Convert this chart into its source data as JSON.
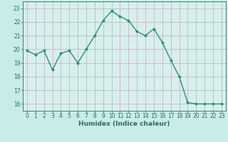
{
  "x": [
    0,
    1,
    2,
    3,
    4,
    5,
    6,
    7,
    8,
    9,
    10,
    11,
    12,
    13,
    14,
    15,
    16,
    17,
    18,
    19,
    20,
    21,
    22,
    23
  ],
  "y": [
    19.9,
    19.6,
    19.9,
    18.5,
    19.7,
    19.9,
    19.0,
    20.0,
    21.0,
    22.1,
    22.8,
    22.4,
    22.1,
    21.3,
    21.0,
    21.5,
    20.5,
    19.2,
    18.0,
    16.1,
    16.0,
    16.0,
    16.0,
    16.0
  ],
  "line_color": "#2e8b7a",
  "marker": "D",
  "markersize": 2.2,
  "linewidth": 1.0,
  "xlabel": "Humidex (Indice chaleur)",
  "xlim": [
    -0.5,
    23.5
  ],
  "ylim": [
    15.5,
    23.5
  ],
  "yticks": [
    16,
    17,
    18,
    19,
    20,
    21,
    22,
    23
  ],
  "xticks": [
    0,
    1,
    2,
    3,
    4,
    5,
    6,
    7,
    8,
    9,
    10,
    11,
    12,
    13,
    14,
    15,
    16,
    17,
    18,
    19,
    20,
    21,
    22,
    23
  ],
  "bg_color": "#c8ece8",
  "plot_bg_color": "#d8f0ec",
  "grid_color": "#c0b8c0",
  "tick_color": "#2e6b5e",
  "label_color": "#2e6b5e",
  "xlabel_fontsize": 6.5,
  "tick_fontsize": 5.5
}
